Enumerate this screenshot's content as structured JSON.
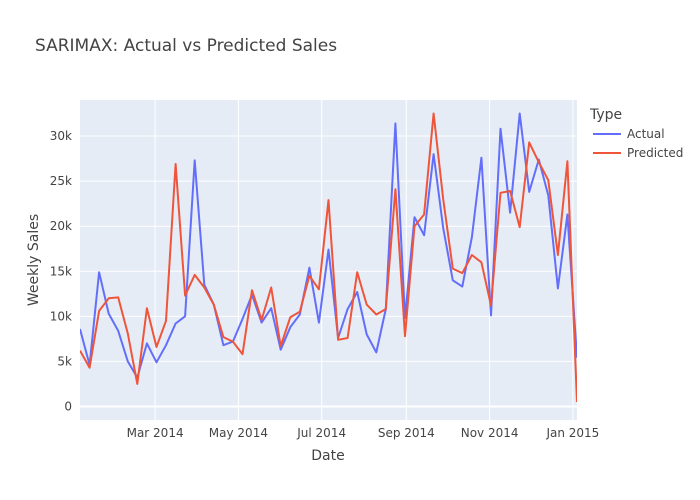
{
  "chart_data": {
    "type": "line",
    "title": "SARIMAX: Actual vs Predicted Sales",
    "xlabel": "Date",
    "ylabel": "Weekly Sales",
    "legend_title": "Type",
    "legend_position": "right",
    "grid": true,
    "x_start": "2014-01-05",
    "x_interval_days": 7,
    "x_range": [
      "2014-01-05",
      "2015-01-04"
    ],
    "ylim": [
      -1500,
      34000
    ],
    "y_ticks": [
      0,
      5000,
      10000,
      15000,
      20000,
      25000,
      30000
    ],
    "y_tick_labels": [
      "0",
      "5k",
      "10k",
      "15k",
      "20k",
      "25k",
      "30k"
    ],
    "x_ticks": [
      "2014-03-01",
      "2014-05-01",
      "2014-07-01",
      "2014-09-01",
      "2014-11-01",
      "2015-01-01"
    ],
    "x_tick_labels": [
      "Mar 2014",
      "May 2014",
      "Jul 2014",
      "Sep 2014",
      "Nov 2014",
      "Jan 2015"
    ],
    "colors": {
      "plot_bg": "#e5ecf6",
      "grid": "#ffffff",
      "actual": "#636efa",
      "predicted": "#ef553b"
    },
    "series": [
      {
        "name": "Actual",
        "color": "#636efa",
        "values": [
          8600,
          4600,
          14900,
          10300,
          8400,
          5000,
          3200,
          7000,
          4900,
          6800,
          9200,
          10000,
          27300,
          13500,
          11300,
          6800,
          7200,
          9700,
          12400,
          9300,
          10900,
          6300,
          8800,
          10200,
          15400,
          9300,
          17400,
          7600,
          10800,
          12700,
          8000,
          6000,
          10800,
          31400,
          9800,
          21000,
          19000,
          28000,
          19800,
          14000,
          13300,
          18800,
          27600,
          10100,
          30800,
          21500,
          32500,
          23800,
          27400,
          23400,
          13100,
          21300,
          5400
        ]
      },
      {
        "name": "Predicted",
        "color": "#ef553b",
        "values": [
          6200,
          4300,
          10600,
          12000,
          12100,
          8100,
          2500,
          10900,
          6600,
          9500,
          26900,
          12300,
          14600,
          13200,
          11300,
          7700,
          7200,
          5800,
          12900,
          9600,
          13200,
          6700,
          9900,
          10500,
          14500,
          13000,
          22900,
          7400,
          7600,
          14900,
          11300,
          10200,
          10800,
          24100,
          7800,
          20000,
          21300,
          32500,
          23000,
          15300,
          14800,
          16800,
          16000,
          11200,
          23700,
          23900,
          19900,
          29300,
          27100,
          25100,
          16800,
          27200,
          500
        ]
      }
    ]
  }
}
